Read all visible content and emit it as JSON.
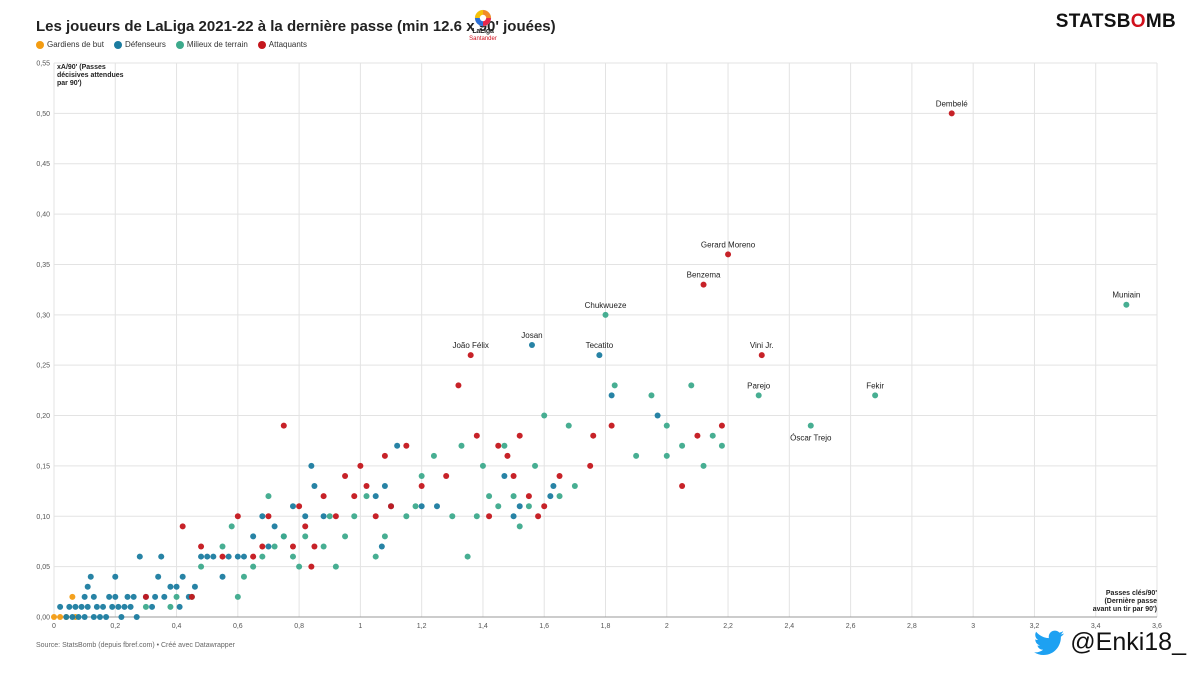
{
  "header": {
    "title": "Les joueurs de LaLiga 2021-22 à la dernière passe (min 12.6 x 90' jouées)",
    "brand_part1": "STATSB",
    "brand_part2": "O",
    "brand_part3": "MB",
    "league_logo_line1": "LaLiga",
    "league_logo_line2": "Santander"
  },
  "legend": [
    {
      "label": "Gardiens de but",
      "color": "#f39c12"
    },
    {
      "label": "Défenseurs",
      "color": "#1b7ca0"
    },
    {
      "label": "Milieux de terrain",
      "color": "#3daa8c"
    },
    {
      "label": "Attaquants",
      "color": "#c4161c"
    }
  ],
  "footer": {
    "source": "Source: StatsBomb (depuis fbref.com) • Créé avec Datawrapper",
    "twitter_handle": "@Enki18_"
  },
  "chart_data": {
    "type": "scatter",
    "title": "Les joueurs de LaLiga 2021-22 à la dernière passe (min 12.6 x 90' jouées)",
    "ylabel_lines": [
      "xA/90' (Passes",
      "décisives attendues",
      "par 90')"
    ],
    "xlabel_lines": [
      "Passes clés/90'",
      "(Dernière passe",
      "avant un tir par 90')"
    ],
    "xlim": [
      0,
      3.6
    ],
    "ylim": [
      0,
      0.55
    ],
    "xticks": [
      0,
      0.2,
      0.4,
      0.6,
      0.8,
      1,
      1.2,
      1.4,
      1.6,
      1.8,
      2,
      2.2,
      2.4,
      2.6,
      2.8,
      3,
      3.2,
      3.4,
      3.6
    ],
    "xtick_labels": [
      "0",
      "0,2",
      "0,4",
      "0,6",
      "0,8",
      "1",
      "1,2",
      "1,4",
      "1,6",
      "1,8",
      "2",
      "2,2",
      "2,4",
      "2,6",
      "2,8",
      "3",
      "3,2",
      "3,4",
      "3,6"
    ],
    "yticks": [
      0,
      0.05,
      0.1,
      0.15,
      0.2,
      0.25,
      0.3,
      0.35,
      0.4,
      0.45,
      0.5,
      0.55
    ],
    "ytick_labels": [
      "0,00",
      "0,05",
      "0,10",
      "0,15",
      "0,20",
      "0,25",
      "0,30",
      "0,35",
      "0,40",
      "0,45",
      "0,50",
      "0,55"
    ],
    "grid": true,
    "legend_position": "top-left",
    "series": [
      {
        "name": "Gardiens de but",
        "color": "#f39c12",
        "points": [
          [
            0.0,
            0.0
          ],
          [
            0.02,
            0.0
          ],
          [
            0.04,
            0.0
          ],
          [
            0.06,
            0.02
          ],
          [
            0.07,
            0.0
          ]
        ]
      },
      {
        "name": "Défenseurs",
        "color": "#1b7ca0",
        "points": [
          [
            0.02,
            0.01
          ],
          [
            0.04,
            0.0
          ],
          [
            0.05,
            0.01
          ],
          [
            0.06,
            0.0
          ],
          [
            0.07,
            0.01
          ],
          [
            0.08,
            0.0
          ],
          [
            0.09,
            0.01
          ],
          [
            0.1,
            0.0
          ],
          [
            0.1,
            0.02
          ],
          [
            0.11,
            0.01
          ],
          [
            0.11,
            0.03
          ],
          [
            0.12,
            0.04
          ],
          [
            0.13,
            0.0
          ],
          [
            0.13,
            0.02
          ],
          [
            0.14,
            0.01
          ],
          [
            0.15,
            0.0
          ],
          [
            0.16,
            0.01
          ],
          [
            0.17,
            0.0
          ],
          [
            0.18,
            0.02
          ],
          [
            0.19,
            0.01
          ],
          [
            0.2,
            0.02
          ],
          [
            0.2,
            0.04
          ],
          [
            0.21,
            0.01
          ],
          [
            0.22,
            0.0
          ],
          [
            0.23,
            0.01
          ],
          [
            0.24,
            0.02
          ],
          [
            0.25,
            0.01
          ],
          [
            0.26,
            0.02
          ],
          [
            0.27,
            0.0
          ],
          [
            0.28,
            0.06
          ],
          [
            0.3,
            0.02
          ],
          [
            0.32,
            0.01
          ],
          [
            0.33,
            0.02
          ],
          [
            0.34,
            0.04
          ],
          [
            0.35,
            0.06
          ],
          [
            0.36,
            0.02
          ],
          [
            0.38,
            0.03
          ],
          [
            0.4,
            0.03
          ],
          [
            0.41,
            0.01
          ],
          [
            0.42,
            0.04
          ],
          [
            0.44,
            0.02
          ],
          [
            0.46,
            0.03
          ],
          [
            0.48,
            0.06
          ],
          [
            0.5,
            0.06
          ],
          [
            0.52,
            0.06
          ],
          [
            0.55,
            0.04
          ],
          [
            0.57,
            0.06
          ],
          [
            0.6,
            0.06
          ],
          [
            0.62,
            0.06
          ],
          [
            0.65,
            0.08
          ],
          [
            0.68,
            0.1
          ],
          [
            0.7,
            0.07
          ],
          [
            0.72,
            0.09
          ],
          [
            0.75,
            0.08
          ],
          [
            0.78,
            0.11
          ],
          [
            0.82,
            0.1
          ],
          [
            0.84,
            0.15
          ],
          [
            0.85,
            0.13
          ],
          [
            0.88,
            0.1
          ],
          [
            1.05,
            0.12
          ],
          [
            1.07,
            0.07
          ],
          [
            1.08,
            0.13
          ],
          [
            1.1,
            0.11
          ],
          [
            1.12,
            0.17
          ],
          [
            1.2,
            0.11
          ],
          [
            1.25,
            0.11
          ],
          [
            1.47,
            0.14
          ],
          [
            1.5,
            0.1
          ],
          [
            1.52,
            0.11
          ],
          [
            1.56,
            0.27
          ],
          [
            1.62,
            0.12
          ],
          [
            1.63,
            0.13
          ],
          [
            1.78,
            0.26
          ],
          [
            1.82,
            0.22
          ],
          [
            1.97,
            0.2
          ]
        ]
      },
      {
        "name": "Milieux de terrain",
        "color": "#3daa8c",
        "points": [
          [
            0.3,
            0.01
          ],
          [
            0.38,
            0.01
          ],
          [
            0.4,
            0.02
          ],
          [
            0.45,
            0.02
          ],
          [
            0.48,
            0.05
          ],
          [
            0.55,
            0.07
          ],
          [
            0.58,
            0.09
          ],
          [
            0.6,
            0.02
          ],
          [
            0.62,
            0.04
          ],
          [
            0.65,
            0.05
          ],
          [
            0.68,
            0.06
          ],
          [
            0.7,
            0.12
          ],
          [
            0.72,
            0.07
          ],
          [
            0.75,
            0.08
          ],
          [
            0.78,
            0.06
          ],
          [
            0.8,
            0.05
          ],
          [
            0.82,
            0.08
          ],
          [
            0.88,
            0.07
          ],
          [
            0.9,
            0.1
          ],
          [
            0.92,
            0.05
          ],
          [
            0.95,
            0.08
          ],
          [
            0.98,
            0.1
          ],
          [
            1.02,
            0.12
          ],
          [
            1.05,
            0.06
          ],
          [
            1.08,
            0.08
          ],
          [
            1.15,
            0.1
          ],
          [
            1.18,
            0.11
          ],
          [
            1.2,
            0.14
          ],
          [
            1.24,
            0.16
          ],
          [
            1.3,
            0.1
          ],
          [
            1.33,
            0.17
          ],
          [
            1.35,
            0.06
          ],
          [
            1.38,
            0.1
          ],
          [
            1.4,
            0.15
          ],
          [
            1.42,
            0.12
          ],
          [
            1.45,
            0.11
          ],
          [
            1.47,
            0.17
          ],
          [
            1.5,
            0.12
          ],
          [
            1.52,
            0.09
          ],
          [
            1.55,
            0.11
          ],
          [
            1.57,
            0.15
          ],
          [
            1.6,
            0.2
          ],
          [
            1.65,
            0.12
          ],
          [
            1.68,
            0.19
          ],
          [
            1.7,
            0.13
          ],
          [
            1.8,
            0.3
          ],
          [
            1.83,
            0.23
          ],
          [
            1.9,
            0.16
          ],
          [
            1.95,
            0.22
          ],
          [
            2.0,
            0.16
          ],
          [
            2.0,
            0.19
          ],
          [
            2.05,
            0.17
          ],
          [
            2.08,
            0.23
          ],
          [
            2.12,
            0.15
          ],
          [
            2.15,
            0.18
          ],
          [
            2.18,
            0.17
          ],
          [
            2.3,
            0.22
          ],
          [
            2.47,
            0.19
          ],
          [
            2.68,
            0.22
          ],
          [
            3.5,
            0.31
          ]
        ]
      },
      {
        "name": "Attaquants",
        "color": "#c4161c",
        "points": [
          [
            0.3,
            0.02
          ],
          [
            0.42,
            0.09
          ],
          [
            0.45,
            0.02
          ],
          [
            0.48,
            0.07
          ],
          [
            0.55,
            0.06
          ],
          [
            0.6,
            0.1
          ],
          [
            0.65,
            0.06
          ],
          [
            0.68,
            0.07
          ],
          [
            0.7,
            0.1
          ],
          [
            0.75,
            0.19
          ],
          [
            0.78,
            0.07
          ],
          [
            0.8,
            0.11
          ],
          [
            0.82,
            0.09
          ],
          [
            0.84,
            0.05
          ],
          [
            0.85,
            0.07
          ],
          [
            0.88,
            0.12
          ],
          [
            0.92,
            0.1
          ],
          [
            0.95,
            0.14
          ],
          [
            0.98,
            0.12
          ],
          [
            1.0,
            0.15
          ],
          [
            1.02,
            0.13
          ],
          [
            1.05,
            0.1
          ],
          [
            1.08,
            0.16
          ],
          [
            1.1,
            0.11
          ],
          [
            1.15,
            0.17
          ],
          [
            1.2,
            0.13
          ],
          [
            1.28,
            0.14
          ],
          [
            1.32,
            0.23
          ],
          [
            1.36,
            0.26
          ],
          [
            1.38,
            0.18
          ],
          [
            1.42,
            0.1
          ],
          [
            1.45,
            0.17
          ],
          [
            1.48,
            0.16
          ],
          [
            1.5,
            0.14
          ],
          [
            1.52,
            0.18
          ],
          [
            1.55,
            0.12
          ],
          [
            1.58,
            0.1
          ],
          [
            1.6,
            0.11
          ],
          [
            1.65,
            0.14
          ],
          [
            1.75,
            0.15
          ],
          [
            1.76,
            0.18
          ],
          [
            1.82,
            0.19
          ],
          [
            2.05,
            0.13
          ],
          [
            2.1,
            0.18
          ],
          [
            2.12,
            0.33
          ],
          [
            2.18,
            0.19
          ],
          [
            2.2,
            0.36
          ],
          [
            2.31,
            0.26
          ],
          [
            2.93,
            0.5
          ]
        ]
      }
    ],
    "annotations": [
      {
        "label": "Dembelé",
        "x": 2.93,
        "y": 0.5,
        "pos": "above"
      },
      {
        "label": "Gerard Moreno",
        "x": 2.2,
        "y": 0.36,
        "pos": "above"
      },
      {
        "label": "Benzema",
        "x": 2.12,
        "y": 0.33,
        "pos": "above"
      },
      {
        "label": "Muniain",
        "x": 3.5,
        "y": 0.31,
        "pos": "above"
      },
      {
        "label": "Chukwueze",
        "x": 1.8,
        "y": 0.3,
        "pos": "above"
      },
      {
        "label": "Josan",
        "x": 1.56,
        "y": 0.27,
        "pos": "above"
      },
      {
        "label": "Tecatito",
        "x": 1.78,
        "y": 0.26,
        "pos": "above"
      },
      {
        "label": "João Félix",
        "x": 1.36,
        "y": 0.26,
        "pos": "above"
      },
      {
        "label": "Vini Jr.",
        "x": 2.31,
        "y": 0.26,
        "pos": "above"
      },
      {
        "label": "Parejo",
        "x": 2.3,
        "y": 0.22,
        "pos": "above"
      },
      {
        "label": "Fekir",
        "x": 2.68,
        "y": 0.22,
        "pos": "above"
      },
      {
        "label": "Óscar Trejo",
        "x": 2.47,
        "y": 0.19,
        "pos": "below"
      }
    ]
  }
}
